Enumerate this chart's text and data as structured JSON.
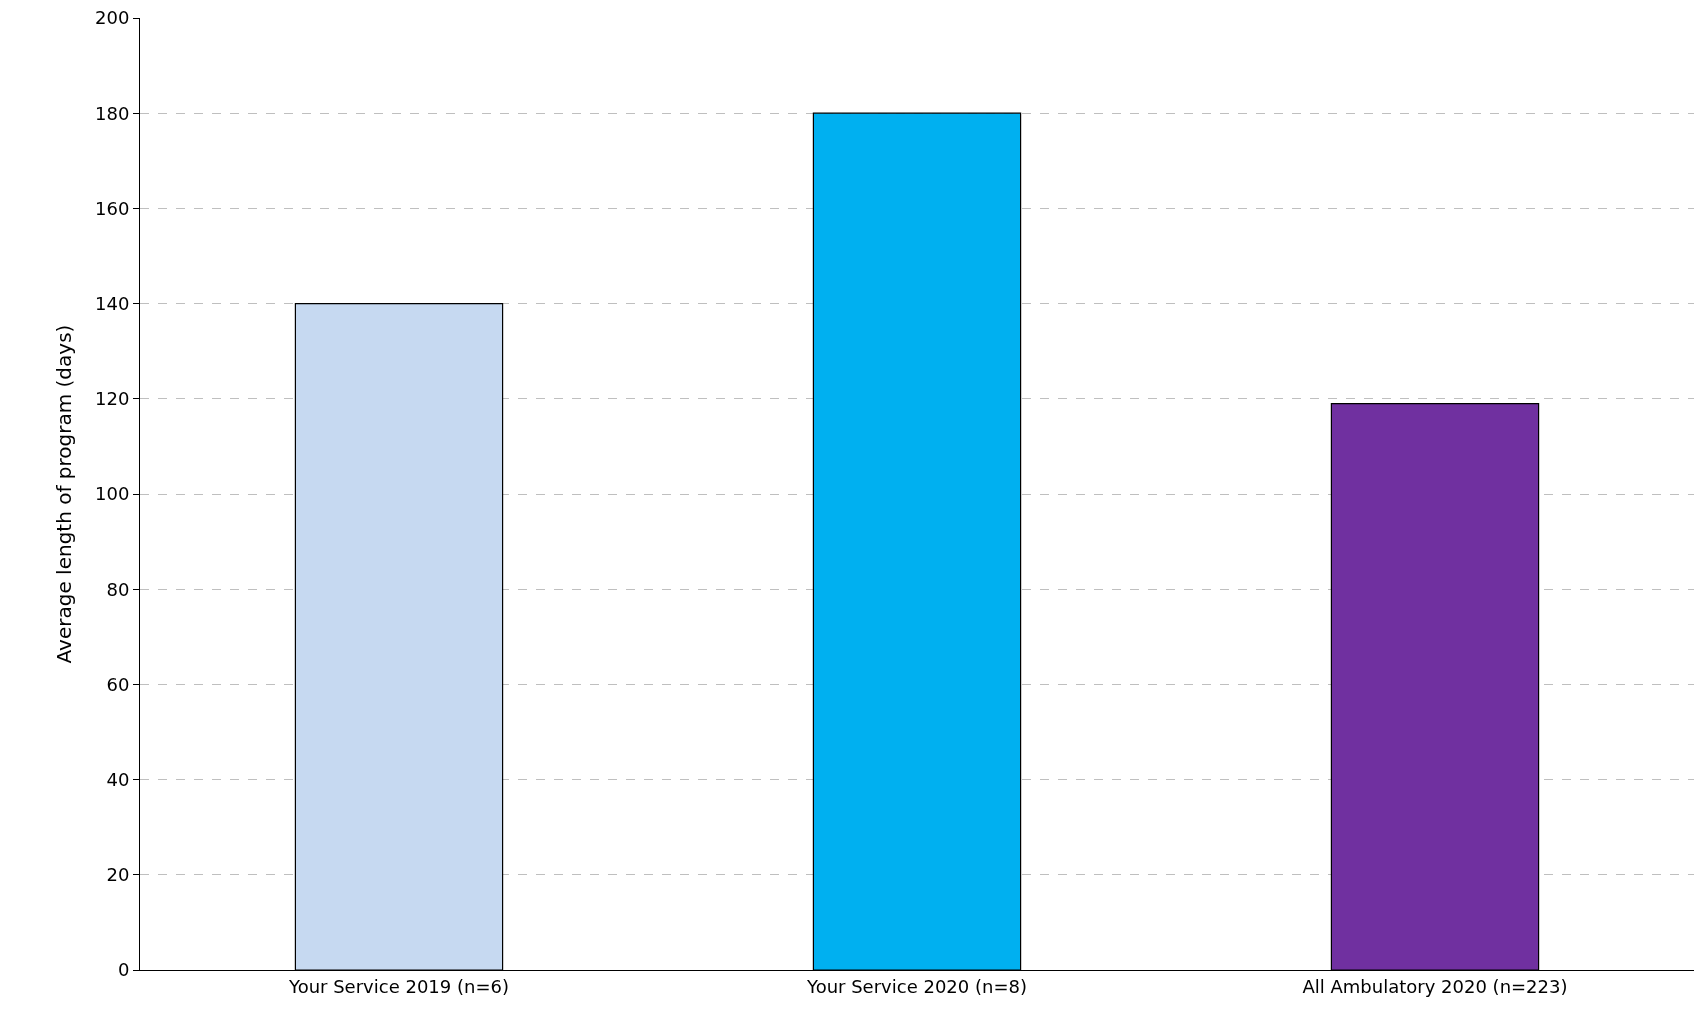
{
  "chart_data": {
    "type": "bar",
    "ylabel": "Average length of program (days)",
    "categories": [
      "Your Service 2019 (n=6)",
      "Your Service 2020 (n=8)",
      "All Ambulatory 2020 (n=223)"
    ],
    "values": [
      140,
      180,
      119
    ],
    "colors": [
      "#c6d9f1",
      "#00b0f0",
      "#7030a0"
    ],
    "ylim": [
      0,
      200
    ],
    "yticks": [
      0,
      20,
      40,
      60,
      80,
      100,
      120,
      140,
      160,
      180,
      200
    ],
    "grid": "y",
    "legend": false
  }
}
